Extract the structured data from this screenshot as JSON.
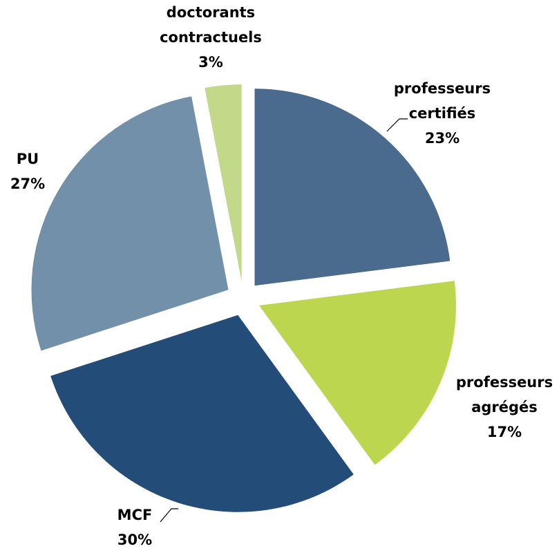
{
  "chart_data": {
    "type": "pie",
    "categories": [
      "professeurs certifiés",
      "professeurs agrégés",
      "MCF",
      "PU",
      "doctorants contractuels"
    ],
    "values": [
      23,
      17,
      30,
      27,
      3
    ],
    "value_labels": [
      "23%",
      "17%",
      "30%",
      "27%",
      "3%"
    ],
    "colors": [
      "#4a6a8e",
      "#bcd64f",
      "#234d78",
      "#7390ab",
      "#c3d98a"
    ]
  }
}
